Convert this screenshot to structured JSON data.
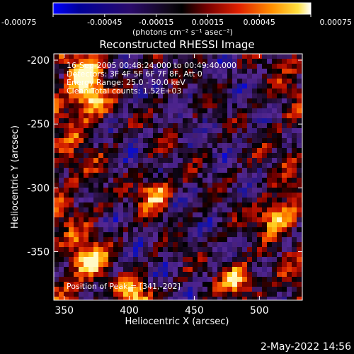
{
  "chart_data": {
    "type": "heatmap",
    "title": "Reconstructed RHESSI Image",
    "xlabel": "Heliocentric X (arcsec)",
    "ylabel": "Heliocentric Y (arcsec)",
    "xlim": [
      342,
      533
    ],
    "ylim": [
      -388,
      -195
    ],
    "x_ticks": [
      350,
      400,
      450,
      500
    ],
    "y_ticks": [
      -200,
      -250,
      -300,
      -350
    ],
    "colorbar": {
      "range": [
        -0.00075,
        0.00075
      ],
      "ticks": [
        "-0.00075",
        "-0.00045",
        "-0.00015",
        "0.00015",
        "0.00045",
        "0.00075"
      ],
      "unit": "(photons cm⁻² s⁻¹ asec⁻²)",
      "colormap": [
        "#0000ff",
        "#00007f",
        "#3a1a6a",
        "#6a2aa0",
        "#000000",
        "#8a0000",
        "#e02000",
        "#ff8000",
        "#ffe000",
        "#ffffff"
      ]
    },
    "annotations": [
      "16-Sep-2005 00:48:24.000 to 00:49:40.000",
      "Detectors: 3F 4F 5F 6F 7F 8F, Att 0",
      "Energy Range: 25.0 - 50.0 keV",
      "Clean     Total counts: 1.52E+03"
    ],
    "peak_label": "Position of Peak = [341,-202]",
    "bright_sources": [
      {
        "x": 420,
        "y": -304
      },
      {
        "x": 512,
        "y": -322
      },
      {
        "x": 371,
        "y": -232
      },
      {
        "x": 366,
        "y": -211
      },
      {
        "x": 404,
        "y": -385
      },
      {
        "x": 370,
        "y": -357
      },
      {
        "x": 484,
        "y": -372
      }
    ]
  },
  "footer_date": "2-May-2022 14:56"
}
